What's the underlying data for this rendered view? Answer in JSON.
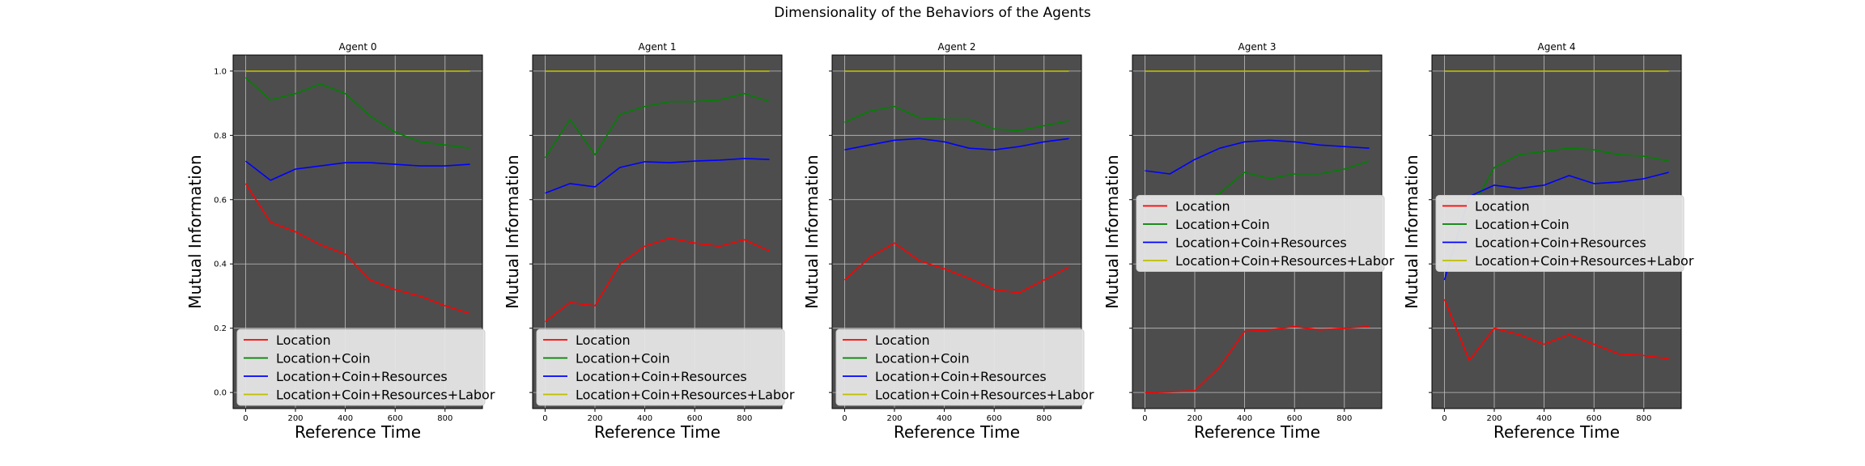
{
  "figure": {
    "suptitle": "Dimensionality of the Behaviors of the Agents",
    "background": "#ffffff",
    "plot_background": "#4d4d4d",
    "grid_color": "#bfbfbf"
  },
  "chart_data": [
    {
      "type": "line",
      "title": "Agent 0",
      "xlabel": "Reference Time",
      "ylabel": "Mutual Information",
      "xlim": [
        -50,
        950
      ],
      "ylim": [
        -0.05,
        1.05
      ],
      "xticks": [
        0,
        200,
        400,
        600,
        800
      ],
      "yticks": [
        "0.0",
        "0.2",
        "0.4",
        "0.6",
        "0.8",
        "1.0"
      ],
      "show_ytick_labels": true,
      "grid": true,
      "legend_loc": "lower center",
      "x": [
        0,
        100,
        200,
        300,
        400,
        500,
        600,
        700,
        800,
        900
      ],
      "series": [
        {
          "name": "Location",
          "color": "#ff0000",
          "values": [
            0.65,
            0.53,
            0.5,
            0.46,
            0.43,
            0.35,
            0.32,
            0.3,
            0.27,
            0.245
          ]
        },
        {
          "name": "Location+Coin",
          "color": "#008000",
          "values": [
            0.98,
            0.91,
            0.93,
            0.96,
            0.93,
            0.86,
            0.81,
            0.78,
            0.77,
            0.76
          ]
        },
        {
          "name": "Location+Coin+Resources",
          "color": "#0000ff",
          "values": [
            0.72,
            0.66,
            0.695,
            0.705,
            0.715,
            0.715,
            0.71,
            0.705,
            0.705,
            0.71
          ]
        },
        {
          "name": "Location+Coin+Resources+Labor",
          "color": "#bfbf00",
          "values": [
            1.0,
            1.0,
            1.0,
            1.0,
            1.0,
            1.0,
            1.0,
            1.0,
            1.0,
            1.0
          ]
        }
      ]
    },
    {
      "type": "line",
      "title": "Agent 1",
      "xlabel": "Reference Time",
      "ylabel": "Mutual Information",
      "xlim": [
        -50,
        950
      ],
      "ylim": [
        -0.05,
        1.05
      ],
      "xticks": [
        0,
        200,
        400,
        600,
        800
      ],
      "yticks": [
        "0.0",
        "0.2",
        "0.4",
        "0.6",
        "0.8",
        "1.0"
      ],
      "show_ytick_labels": false,
      "grid": true,
      "legend_loc": "lower center",
      "x": [
        0,
        100,
        200,
        300,
        400,
        500,
        600,
        700,
        800,
        900
      ],
      "series": [
        {
          "name": "Location",
          "color": "#ff0000",
          "values": [
            0.22,
            0.28,
            0.27,
            0.4,
            0.455,
            0.48,
            0.465,
            0.455,
            0.475,
            0.44
          ]
        },
        {
          "name": "Location+Coin",
          "color": "#008000",
          "values": [
            0.73,
            0.85,
            0.74,
            0.865,
            0.89,
            0.905,
            0.905,
            0.91,
            0.93,
            0.905
          ]
        },
        {
          "name": "Location+Coin+Resources",
          "color": "#0000ff",
          "values": [
            0.62,
            0.65,
            0.64,
            0.7,
            0.718,
            0.715,
            0.72,
            0.723,
            0.728,
            0.725
          ]
        },
        {
          "name": "Location+Coin+Resources+Labor",
          "color": "#bfbf00",
          "values": [
            1.0,
            1.0,
            1.0,
            1.0,
            1.0,
            1.0,
            1.0,
            1.0,
            1.0,
            1.0
          ]
        }
      ]
    },
    {
      "type": "line",
      "title": "Agent 2",
      "xlabel": "Reference Time",
      "ylabel": "Mutual Information",
      "xlim": [
        -50,
        950
      ],
      "ylim": [
        -0.05,
        1.05
      ],
      "xticks": [
        0,
        200,
        400,
        600,
        800
      ],
      "yticks": [
        "0.0",
        "0.2",
        "0.4",
        "0.6",
        "0.8",
        "1.0"
      ],
      "show_ytick_labels": false,
      "grid": true,
      "legend_loc": "lower center",
      "x": [
        0,
        100,
        200,
        300,
        400,
        500,
        600,
        700,
        800,
        900
      ],
      "series": [
        {
          "name": "Location",
          "color": "#ff0000",
          "values": [
            0.35,
            0.42,
            0.465,
            0.41,
            0.385,
            0.355,
            0.32,
            0.31,
            0.35,
            0.39
          ]
        },
        {
          "name": "Location+Coin",
          "color": "#008000",
          "values": [
            0.84,
            0.875,
            0.89,
            0.855,
            0.85,
            0.85,
            0.82,
            0.815,
            0.83,
            0.845
          ]
        },
        {
          "name": "Location+Coin+Resources",
          "color": "#0000ff",
          "values": [
            0.755,
            0.77,
            0.785,
            0.79,
            0.78,
            0.76,
            0.755,
            0.765,
            0.78,
            0.79
          ]
        },
        {
          "name": "Location+Coin+Resources+Labor",
          "color": "#bfbf00",
          "values": [
            1.0,
            1.0,
            1.0,
            1.0,
            1.0,
            1.0,
            1.0,
            1.0,
            1.0,
            1.0
          ]
        }
      ]
    },
    {
      "type": "line",
      "title": "Agent 3",
      "xlabel": "Reference Time",
      "ylabel": "Mutual Information",
      "xlim": [
        -50,
        950
      ],
      "ylim": [
        -0.05,
        1.05
      ],
      "xticks": [
        0,
        200,
        400,
        600,
        800
      ],
      "yticks": [
        "0.0",
        "0.2",
        "0.4",
        "0.6",
        "0.8",
        "1.0"
      ],
      "show_ytick_labels": false,
      "grid": true,
      "legend_loc": "center",
      "x": [
        0,
        100,
        200,
        300,
        400,
        500,
        600,
        700,
        800,
        900
      ],
      "series": [
        {
          "name": "Location",
          "color": "#ff0000",
          "values": [
            0.0,
            0.002,
            0.005,
            0.08,
            0.19,
            0.195,
            0.205,
            0.195,
            0.2,
            0.205
          ]
        },
        {
          "name": "Location+Coin",
          "color": "#008000",
          "values": [
            0.52,
            0.55,
            0.58,
            0.62,
            0.685,
            0.665,
            0.68,
            0.68,
            0.695,
            0.72
          ]
        },
        {
          "name": "Location+Coin+Resources",
          "color": "#0000ff",
          "values": [
            0.69,
            0.68,
            0.725,
            0.76,
            0.78,
            0.785,
            0.78,
            0.77,
            0.765,
            0.76
          ]
        },
        {
          "name": "Location+Coin+Resources+Labor",
          "color": "#bfbf00",
          "values": [
            1.0,
            1.0,
            1.0,
            1.0,
            1.0,
            1.0,
            1.0,
            1.0,
            1.0,
            1.0
          ]
        }
      ]
    },
    {
      "type": "line",
      "title": "Agent 4",
      "xlabel": "Reference Time",
      "ylabel": "Mutual Information",
      "xlim": [
        -50,
        950
      ],
      "ylim": [
        -0.05,
        1.05
      ],
      "xticks": [
        0,
        200,
        400,
        600,
        800
      ],
      "yticks": [
        "0.0",
        "0.2",
        "0.4",
        "0.6",
        "0.8",
        "1.0"
      ],
      "show_ytick_labels": false,
      "grid": true,
      "legend_loc": "center",
      "x": [
        0,
        100,
        200,
        300,
        400,
        500,
        600,
        700,
        800,
        900
      ],
      "series": [
        {
          "name": "Location",
          "color": "#ff0000",
          "values": [
            0.29,
            0.1,
            0.2,
            0.18,
            0.15,
            0.18,
            0.15,
            0.12,
            0.115,
            0.105
          ]
        },
        {
          "name": "Location+Coin",
          "color": "#008000",
          "values": [
            0.38,
            0.56,
            0.7,
            0.74,
            0.75,
            0.76,
            0.755,
            0.74,
            0.735,
            0.72
          ]
        },
        {
          "name": "Location+Coin+Resources",
          "color": "#0000ff",
          "values": [
            0.35,
            0.61,
            0.645,
            0.635,
            0.645,
            0.675,
            0.65,
            0.655,
            0.665,
            0.685
          ]
        },
        {
          "name": "Location+Coin+Resources+Labor",
          "color": "#bfbf00",
          "values": [
            1.0,
            1.0,
            1.0,
            1.0,
            1.0,
            1.0,
            1.0,
            1.0,
            1.0,
            1.0
          ]
        }
      ]
    }
  ]
}
